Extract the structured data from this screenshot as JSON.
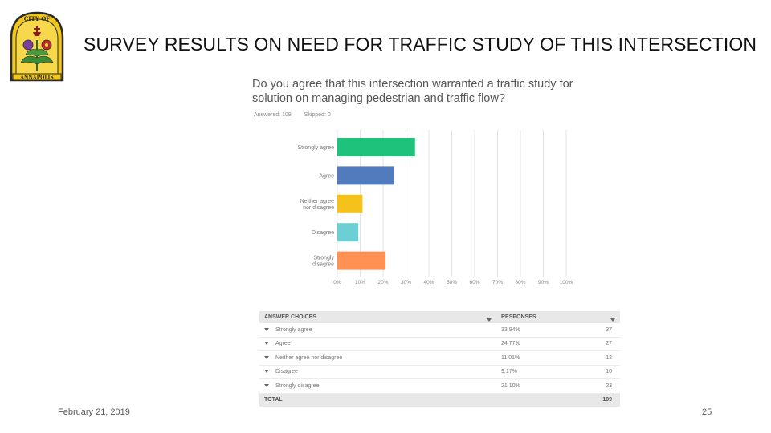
{
  "slide": {
    "title": "SURVEY RESULTS ON NEED FOR TRAFFIC STUDY OF THIS INTERSECTION",
    "footer_date": "February 21, 2019",
    "page_number": "25",
    "logo_text_top": "CITY OF",
    "logo_text_bottom": "ANNAPOLIS"
  },
  "survey": {
    "question": "Do you agree that this intersection warranted a traffic study for solution on managing pedestrian and traffic flow?",
    "answered": "Answered: 109",
    "skipped": "Skipped: 0"
  },
  "chart_data": {
    "type": "bar",
    "orientation": "horizontal",
    "categories": [
      "Strongly agree",
      "Agree",
      "Neither agree nor disagree",
      "Disagree",
      "Strongly disagree"
    ],
    "values": [
      33.94,
      24.77,
      11.01,
      9.17,
      21.1
    ],
    "colors": [
      "#1ec27a",
      "#527bbd",
      "#f5c21b",
      "#6ccfd3",
      "#ff9155"
    ],
    "x_ticks": [
      "0%",
      "10%",
      "20%",
      "30%",
      "40%",
      "50%",
      "60%",
      "70%",
      "80%",
      "90%",
      "100%"
    ],
    "xlim": [
      0,
      100
    ],
    "grid": true
  },
  "table": {
    "headers": {
      "choice": "ANSWER CHOICES",
      "responses": "RESPONSES"
    },
    "rows": [
      {
        "choice": "Strongly agree",
        "pct": "33.94%",
        "count": "37"
      },
      {
        "choice": "Agree",
        "pct": "24.77%",
        "count": "27"
      },
      {
        "choice": "Neither agree nor disagree",
        "pct": "11.01%",
        "count": "12"
      },
      {
        "choice": "Disagree",
        "pct": "9.17%",
        "count": "10"
      },
      {
        "choice": "Strongly disagree",
        "pct": "21.10%",
        "count": "23"
      }
    ],
    "total_label": "TOTAL",
    "total_count": "109"
  }
}
